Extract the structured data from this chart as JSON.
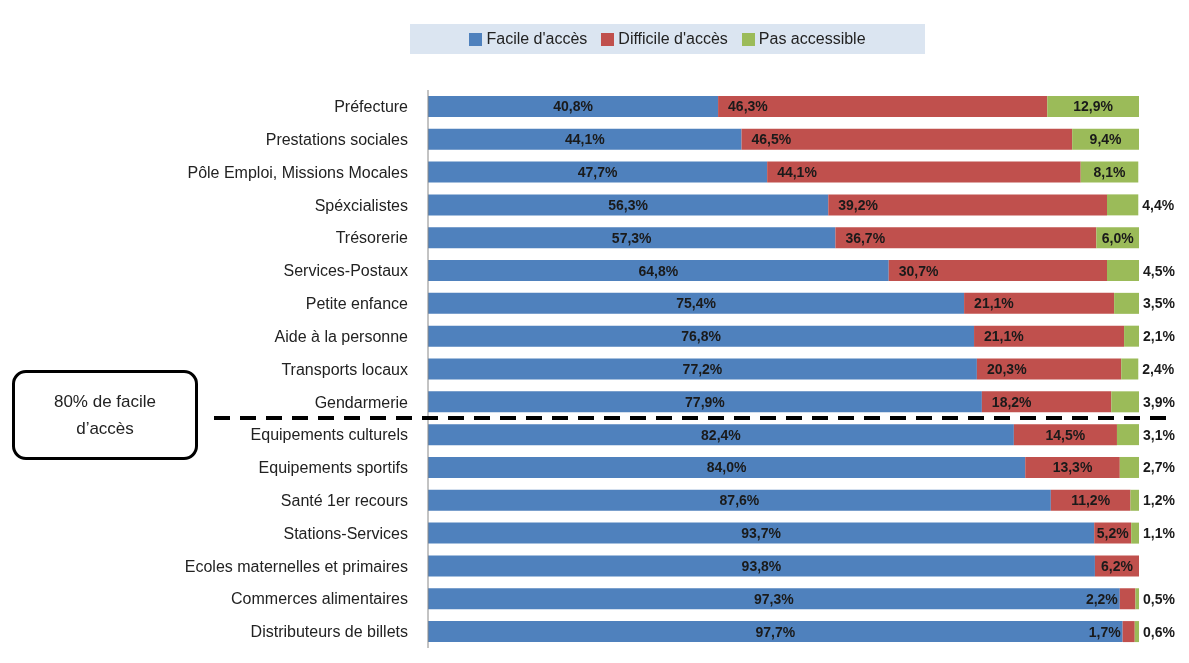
{
  "chart_data": {
    "type": "bar",
    "orientation": "horizontal",
    "stacked": true,
    "legend": "top",
    "categories": [
      "Préfecture",
      "Prestations sociales",
      "Pôle Emploi, Missions Mocales",
      "Spéxcialistes",
      "Trésorerie",
      "Services-Postaux",
      "Petite enfance",
      "Aide à la personne",
      "Transports locaux",
      "Gendarmerie",
      "Equipements culturels",
      "Equipements sportifs",
      "Santé 1er recours",
      "Stations-Services",
      "Ecoles maternelles et primaires",
      "Commerces alimentaires",
      "Distributeurs de billets"
    ],
    "series": [
      {
        "name": "Facile d'accès",
        "color": "#4f81bd",
        "values": [
          40.8,
          44.1,
          47.7,
          56.3,
          57.3,
          64.8,
          75.4,
          76.8,
          77.2,
          77.9,
          82.4,
          84.0,
          87.6,
          93.7,
          93.8,
          97.3,
          97.7
        ],
        "value_labels": [
          "40,8%",
          "44,1%",
          "47,7%",
          "56,3%",
          "57,3%",
          "64,8%",
          "75,4%",
          "76,8%",
          "77,2%",
          "77,9%",
          "82,4%",
          "84,0%",
          "87,6%",
          "93,7%",
          "93,8%",
          "97,3%",
          "97,7%"
        ]
      },
      {
        "name": "Difficile d'accès",
        "color": "#c0504d",
        "values": [
          46.3,
          46.5,
          44.1,
          39.2,
          36.7,
          30.7,
          21.1,
          21.1,
          20.3,
          18.2,
          14.5,
          13.3,
          11.2,
          5.2,
          6.2,
          2.2,
          1.7
        ],
        "value_labels": [
          "46,3%",
          "46,5%",
          "44,1%",
          "39,2%",
          "36,7%",
          "30,7%",
          "21,1%",
          "21,1%",
          "20,3%",
          "18,2%",
          "14,5%",
          "13,3%",
          "11,2%",
          "5,2%",
          "6,2%",
          "2,2%",
          "1,7%"
        ]
      },
      {
        "name": "Pas accessible",
        "color": "#9bbb59",
        "values": [
          12.9,
          9.4,
          8.1,
          4.4,
          6.0,
          4.5,
          3.5,
          2.1,
          2.4,
          3.9,
          3.1,
          2.7,
          1.2,
          1.1,
          null,
          0.5,
          0.6
        ],
        "value_labels": [
          "12,9%",
          "9,4%",
          "8,1%",
          "4,4%",
          "6,0%",
          "4,5%",
          "3,5%",
          "2,1%",
          "2,4%",
          "3,9%",
          "3,1%",
          "2,7%",
          "1,2%",
          "1,1%",
          null,
          "0,5%",
          "0,6%"
        ]
      }
    ],
    "annotations": [
      "80% de facile d’accès"
    ]
  }
}
